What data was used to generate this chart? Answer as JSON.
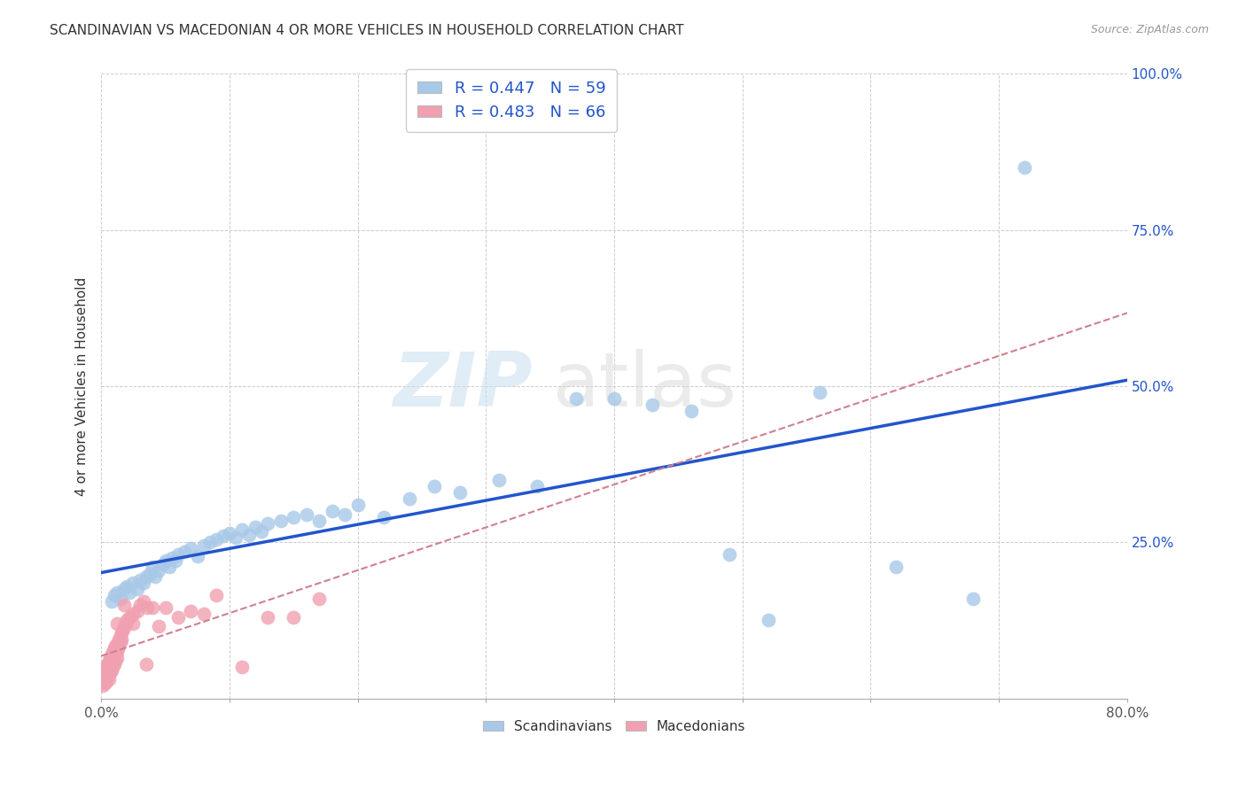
{
  "title": "SCANDINAVIAN VS MACEDONIAN 4 OR MORE VEHICLES IN HOUSEHOLD CORRELATION CHART",
  "source": "Source: ZipAtlas.com",
  "ylabel": "4 or more Vehicles in Household",
  "legend_label1": "Scandinavians",
  "legend_label2": "Macedonians",
  "R1": 0.447,
  "N1": 59,
  "R2": 0.483,
  "N2": 66,
  "xlim": [
    0.0,
    0.8
  ],
  "ylim": [
    0.0,
    1.0
  ],
  "xticks": [
    0.0,
    0.1,
    0.2,
    0.3,
    0.4,
    0.5,
    0.6,
    0.7,
    0.8
  ],
  "yticks": [
    0.0,
    0.25,
    0.5,
    0.75,
    1.0
  ],
  "xticklabels": [
    "0.0%",
    "",
    "",
    "",
    "",
    "",
    "",
    "",
    "80.0%"
  ],
  "yticklabels": [
    "",
    "25.0%",
    "50.0%",
    "75.0%",
    "100.0%"
  ],
  "color_blue": "#a8c8e8",
  "color_pink": "#f0a0b0",
  "color_line_blue": "#2255cc",
  "color_line_pink": "#d08090",
  "watermark_zip": "ZIP",
  "watermark_atlas": "atlas",
  "scandinavian_x": [
    0.008,
    0.01,
    0.012,
    0.015,
    0.018,
    0.02,
    0.022,
    0.025,
    0.028,
    0.03,
    0.033,
    0.035,
    0.038,
    0.04,
    0.042,
    0.045,
    0.048,
    0.05,
    0.053,
    0.055,
    0.058,
    0.06,
    0.065,
    0.07,
    0.075,
    0.08,
    0.085,
    0.09,
    0.095,
    0.1,
    0.105,
    0.11,
    0.115,
    0.12,
    0.125,
    0.13,
    0.14,
    0.15,
    0.16,
    0.17,
    0.18,
    0.19,
    0.2,
    0.22,
    0.24,
    0.26,
    0.28,
    0.31,
    0.34,
    0.37,
    0.4,
    0.43,
    0.46,
    0.49,
    0.52,
    0.56,
    0.62,
    0.68,
    0.72
  ],
  "scandinavian_y": [
    0.155,
    0.165,
    0.17,
    0.16,
    0.175,
    0.18,
    0.17,
    0.185,
    0.175,
    0.19,
    0.185,
    0.195,
    0.2,
    0.21,
    0.195,
    0.205,
    0.215,
    0.22,
    0.21,
    0.225,
    0.22,
    0.23,
    0.235,
    0.24,
    0.228,
    0.245,
    0.25,
    0.255,
    0.26,
    0.265,
    0.258,
    0.27,
    0.262,
    0.275,
    0.268,
    0.28,
    0.285,
    0.29,
    0.295,
    0.285,
    0.3,
    0.295,
    0.31,
    0.29,
    0.32,
    0.34,
    0.33,
    0.35,
    0.34,
    0.48,
    0.48,
    0.47,
    0.46,
    0.23,
    0.125,
    0.49,
    0.21,
    0.16,
    0.85
  ],
  "macedonian_x": [
    0.001,
    0.001,
    0.002,
    0.002,
    0.002,
    0.003,
    0.003,
    0.003,
    0.004,
    0.004,
    0.004,
    0.005,
    0.005,
    0.005,
    0.006,
    0.006,
    0.006,
    0.007,
    0.007,
    0.007,
    0.008,
    0.008,
    0.008,
    0.009,
    0.009,
    0.009,
    0.01,
    0.01,
    0.01,
    0.011,
    0.011,
    0.012,
    0.012,
    0.013,
    0.013,
    0.014,
    0.014,
    0.015,
    0.015,
    0.016,
    0.016,
    0.017,
    0.018,
    0.019,
    0.02,
    0.022,
    0.025,
    0.028,
    0.03,
    0.033,
    0.036,
    0.04,
    0.045,
    0.05,
    0.06,
    0.07,
    0.08,
    0.09,
    0.11,
    0.13,
    0.15,
    0.17,
    0.035,
    0.025,
    0.018,
    0.012
  ],
  "macedonian_y": [
    0.02,
    0.035,
    0.025,
    0.04,
    0.03,
    0.025,
    0.045,
    0.035,
    0.03,
    0.05,
    0.04,
    0.035,
    0.055,
    0.045,
    0.03,
    0.06,
    0.05,
    0.04,
    0.065,
    0.055,
    0.045,
    0.07,
    0.06,
    0.05,
    0.075,
    0.065,
    0.055,
    0.08,
    0.07,
    0.06,
    0.085,
    0.075,
    0.065,
    0.09,
    0.08,
    0.095,
    0.085,
    0.1,
    0.09,
    0.105,
    0.095,
    0.11,
    0.115,
    0.12,
    0.125,
    0.13,
    0.135,
    0.14,
    0.15,
    0.155,
    0.145,
    0.145,
    0.115,
    0.145,
    0.13,
    0.14,
    0.135,
    0.165,
    0.05,
    0.13,
    0.13,
    0.16,
    0.055,
    0.12,
    0.15,
    0.12
  ]
}
